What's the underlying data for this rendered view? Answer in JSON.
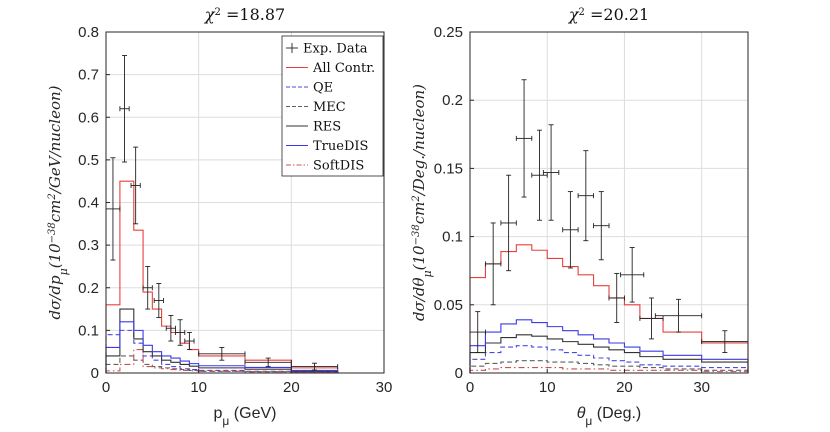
{
  "colors": {
    "all": "#e8403c",
    "qe": "#4a4ae0",
    "mec": "#606060",
    "res": "#333333",
    "truedis": "#3a3ae8",
    "softdis": "#cc5050",
    "data": "#222222",
    "grid": "#dddddd"
  },
  "legend": {
    "entries": [
      {
        "key": "data",
        "label": "Exp. Data",
        "style": "errorbar"
      },
      {
        "key": "all",
        "label": "All Contr.",
        "style": "solid"
      },
      {
        "key": "qe",
        "label": "QE",
        "style": "dashed"
      },
      {
        "key": "mec",
        "label": "MEC",
        "style": "dashed"
      },
      {
        "key": "res",
        "label": "RES",
        "style": "solid"
      },
      {
        "key": "truedis",
        "label": "TrueDIS",
        "style": "solid"
      },
      {
        "key": "softdis",
        "label": "SoftDIS",
        "style": "dashdot"
      }
    ]
  },
  "chart_data": [
    {
      "type": "line",
      "title_symbol": "χ",
      "title_sup": "2",
      "title_value": "=18.87",
      "xlabel_main": "p",
      "xlabel_sub": "μ",
      "xlabel_unit": " (GeV)",
      "ylabel_pre": "dσ/dp",
      "ylabel_sub": "μ",
      "ylabel_post1": "(10",
      "ylabel_sup": "−38",
      "ylabel_post2": "cm",
      "ylabel_sup2": "2",
      "ylabel_post3": "/GeV/nucleon)",
      "xlim": [
        0,
        30
      ],
      "ylim": [
        0,
        0.8
      ],
      "xticks": [
        "0",
        "10",
        "20",
        "30"
      ],
      "xtick_values": [
        0,
        10,
        20,
        30
      ],
      "yticks": [
        "0",
        "0.1",
        "0.2",
        "0.3",
        "0.4",
        "0.5",
        "0.6",
        "0.7",
        "0.8"
      ],
      "ytick_values": [
        0,
        0.1,
        0.2,
        0.3,
        0.4,
        0.5,
        0.6,
        0.7,
        0.8
      ],
      "edges": [
        0,
        1.5,
        3,
        4,
        5,
        6,
        7,
        8,
        9,
        10,
        15,
        20,
        25
      ],
      "series": [
        {
          "key": "all",
          "name": "All Contr.",
          "values": [
            0.16,
            0.45,
            0.335,
            0.19,
            0.15,
            0.11,
            0.095,
            0.07,
            0.055,
            0.04,
            0.03,
            0.012
          ]
        },
        {
          "key": "qe",
          "name": "QE",
          "values": [
            0.09,
            0.1,
            0.07,
            0.04,
            0.03,
            0.02,
            0.015,
            0.01,
            0.008,
            0.006,
            0.004,
            0.002
          ]
        },
        {
          "key": "mec",
          "name": "MEC",
          "values": [
            0.02,
            0.04,
            0.03,
            0.02,
            0.015,
            0.012,
            0.01,
            0.008,
            0.006,
            0.004,
            0.003,
            0.001
          ]
        },
        {
          "key": "res",
          "name": "RES",
          "values": [
            0.04,
            0.15,
            0.08,
            0.05,
            0.04,
            0.03,
            0.025,
            0.02,
            0.016,
            0.012,
            0.009,
            0.004
          ]
        },
        {
          "key": "truedis",
          "name": "TrueDIS",
          "values": [
            0.06,
            0.12,
            0.1,
            0.065,
            0.05,
            0.04,
            0.035,
            0.028,
            0.022,
            0.017,
            0.013,
            0.006
          ]
        },
        {
          "key": "softdis",
          "name": "SoftDIS",
          "values": [
            0.005,
            0.02,
            0.055,
            0.015,
            0.012,
            0.01,
            0.008,
            0.006,
            0.005,
            0.004,
            0.003,
            0.001
          ]
        }
      ],
      "data_points": [
        {
          "x": 0.75,
          "xerr": 0.75,
          "y": 0.385,
          "yerr": 0.12
        },
        {
          "x": 2.0,
          "xerr": 0.5,
          "y": 0.62,
          "yerr": 0.125
        },
        {
          "x": 3.2,
          "xerr": 0.5,
          "y": 0.44,
          "yerr": 0.09
        },
        {
          "x": 4.5,
          "xerr": 0.5,
          "y": 0.2,
          "yerr": 0.05
        },
        {
          "x": 5.7,
          "xerr": 0.5,
          "y": 0.17,
          "yerr": 0.04
        },
        {
          "x": 7.0,
          "xerr": 0.5,
          "y": 0.105,
          "yerr": 0.03
        },
        {
          "x": 8.0,
          "xerr": 0.5,
          "y": 0.095,
          "yerr": 0.03
        },
        {
          "x": 9.0,
          "xerr": 0.5,
          "y": 0.075,
          "yerr": 0.02
        },
        {
          "x": 12.5,
          "xerr": 2.5,
          "y": 0.045,
          "yerr": 0.015
        },
        {
          "x": 17.5,
          "xerr": 2.5,
          "y": 0.025,
          "yerr": 0.01
        },
        {
          "x": 22.5,
          "xerr": 2.5,
          "y": 0.015,
          "yerr": 0.008
        }
      ]
    },
    {
      "type": "line",
      "title_symbol": "χ",
      "title_sup": "2",
      "title_value": "=20.21",
      "xlabel_main": "θ",
      "xlabel_sub": "μ",
      "xlabel_unit": " (Deg.)",
      "ylabel_pre": "dσ/dθ",
      "ylabel_sub": "μ",
      "ylabel_post1": "(10",
      "ylabel_sup": "−38",
      "ylabel_post2": "cm",
      "ylabel_sup2": "2",
      "ylabel_post3": "/Deg./nucleon)",
      "xlim": [
        0,
        36
      ],
      "ylim": [
        0,
        0.25
      ],
      "xticks": [
        "0",
        "10",
        "20",
        "30"
      ],
      "xtick_values": [
        0,
        10,
        20,
        30
      ],
      "yticks": [
        "0",
        "0.05",
        "0.1",
        "0.15",
        "0.2",
        "0.25"
      ],
      "ytick_values": [
        0,
        0.05,
        0.1,
        0.15,
        0.2,
        0.25
      ],
      "edges": [
        0,
        2,
        4,
        6,
        8,
        10,
        12,
        14,
        16,
        18,
        20,
        22,
        25,
        30,
        36
      ],
      "series": [
        {
          "key": "all",
          "name": "All Contr.",
          "values": [
            0.07,
            0.08,
            0.089,
            0.094,
            0.09,
            0.084,
            0.078,
            0.072,
            0.064,
            0.055,
            0.05,
            0.04,
            0.03,
            0.022
          ]
        },
        {
          "key": "qe",
          "name": "QE",
          "values": [
            0.01,
            0.015,
            0.019,
            0.02,
            0.019,
            0.017,
            0.015,
            0.013,
            0.011,
            0.009,
            0.008,
            0.006,
            0.005,
            0.004
          ]
        },
        {
          "key": "mec",
          "name": "MEC",
          "values": [
            0.005,
            0.007,
            0.008,
            0.009,
            0.009,
            0.008,
            0.008,
            0.007,
            0.006,
            0.005,
            0.005,
            0.004,
            0.003,
            0.002
          ]
        },
        {
          "key": "res",
          "name": "RES",
          "values": [
            0.015,
            0.022,
            0.026,
            0.028,
            0.027,
            0.025,
            0.023,
            0.021,
            0.019,
            0.017,
            0.015,
            0.012,
            0.01,
            0.008
          ]
        },
        {
          "key": "truedis",
          "name": "TrueDIS",
          "values": [
            0.02,
            0.03,
            0.036,
            0.039,
            0.037,
            0.034,
            0.031,
            0.028,
            0.025,
            0.022,
            0.019,
            0.016,
            0.013,
            0.01
          ]
        },
        {
          "key": "softdis",
          "name": "SoftDIS",
          "values": [
            0.002,
            0.003,
            0.004,
            0.004,
            0.004,
            0.004,
            0.003,
            0.003,
            0.003,
            0.002,
            0.002,
            0.002,
            0.002,
            0.001
          ]
        }
      ],
      "data_points": [
        {
          "x": 1.0,
          "xerr": 1.0,
          "y": 0.03,
          "yerr": 0.015
        },
        {
          "x": 3.0,
          "xerr": 1.0,
          "y": 0.08,
          "yerr": 0.03
        },
        {
          "x": 5.0,
          "xerr": 1.0,
          "y": 0.11,
          "yerr": 0.035
        },
        {
          "x": 7.0,
          "xerr": 1.0,
          "y": 0.172,
          "yerr": 0.043
        },
        {
          "x": 9.0,
          "xerr": 1.0,
          "y": 0.145,
          "yerr": 0.033
        },
        {
          "x": 10.5,
          "xerr": 1.0,
          "y": 0.147,
          "yerr": 0.035
        },
        {
          "x": 13.0,
          "xerr": 1.0,
          "y": 0.105,
          "yerr": 0.028
        },
        {
          "x": 15.0,
          "xerr": 1.0,
          "y": 0.13,
          "yerr": 0.033
        },
        {
          "x": 17.0,
          "xerr": 1.0,
          "y": 0.108,
          "yerr": 0.025
        },
        {
          "x": 19.0,
          "xerr": 1.0,
          "y": 0.055,
          "yerr": 0.018
        },
        {
          "x": 21.0,
          "xerr": 1.5,
          "y": 0.072,
          "yerr": 0.02
        },
        {
          "x": 23.5,
          "xerr": 1.5,
          "y": 0.04,
          "yerr": 0.015
        },
        {
          "x": 27.0,
          "xerr": 3.0,
          "y": 0.042,
          "yerr": 0.012
        },
        {
          "x": 33.0,
          "xerr": 3.0,
          "y": 0.023,
          "yerr": 0.008
        }
      ]
    }
  ]
}
